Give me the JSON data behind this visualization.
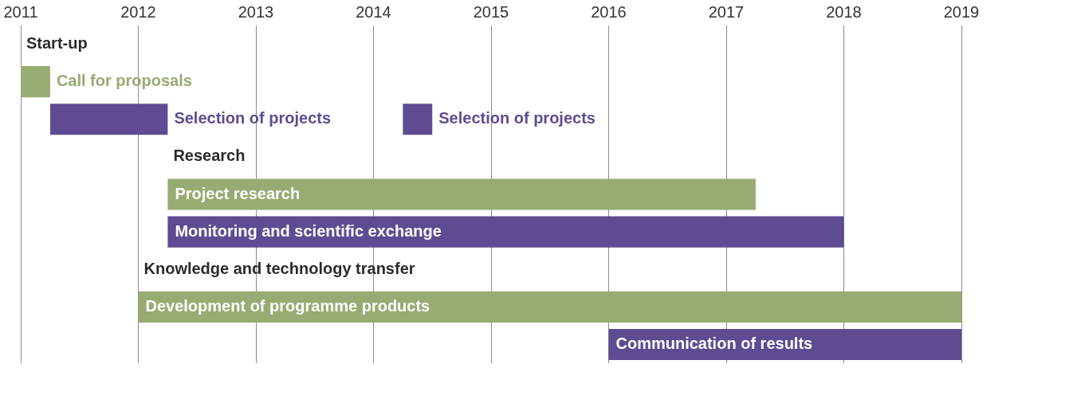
{
  "chart_data": {
    "type": "bar",
    "orientation": "horizontal",
    "categories": [
      "Start-up",
      "Call for proposals",
      "Selection of projects",
      "Research",
      "Project research",
      "Monitoring and scientific exchange",
      "Knowledge and technology transfer",
      "Development of programme products",
      "Communication of results"
    ],
    "series": [
      {
        "color": "#97ab72",
        "base": [
          null,
          2011,
          null,
          null,
          2012.25,
          null,
          null,
          2012,
          null
        ],
        "values": [
          null,
          0.25,
          null,
          null,
          5,
          null,
          null,
          7,
          null
        ]
      },
      {
        "color": "#5f4b91",
        "base": [
          null,
          null,
          2011.25,
          null,
          null,
          2012.25,
          null,
          null,
          2016
        ],
        "values": [
          null,
          null,
          1,
          null,
          null,
          5.75,
          null,
          null,
          3
        ]
      },
      {
        "color": "#5f4b91",
        "base": [
          null,
          null,
          2014.25,
          null,
          null,
          null,
          null,
          null,
          null
        ],
        "values": [
          null,
          null,
          0.25,
          null,
          null,
          null,
          null,
          null,
          null
        ]
      }
    ],
    "xlim": [
      2011,
      2019
    ],
    "xticks": [
      2011,
      2012,
      2013,
      2014,
      2015,
      2016,
      2017,
      2018,
      2019
    ],
    "grid": "x",
    "legend": false
  }
}
